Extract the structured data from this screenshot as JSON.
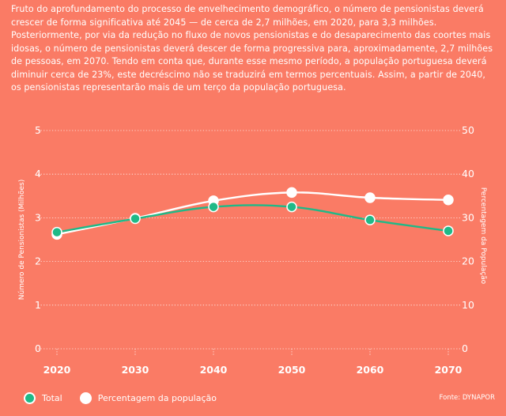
{
  "intro": {
    "text": "Fruto do aprofundamento do processo de envelhecimento demográfico, o número de pensionistas deverá crescer de forma significativa até 2045 — de cerca de 2,7 milhões, em 2020, para 3,3 milhões. Posteriormente, por via da redução no fluxo de novos pensionistas e do desaparecimento das coortes mais idosas, o número de pensionistas deverá descer de forma progressiva para, aproximadamente, 2,7 milhões de pessoas, em 2070. Tendo em conta que, durante esse mesmo período, a população portuguesa deverá diminuir cerca de 23%, este decréscimo não se traduzirá em termos percentuais. Assim, a partir de 2040, os pensionistas representarão mais de um terço da população portuguesa."
  },
  "colors": {
    "background": "#FA7B65",
    "total": "#1FB987",
    "percent": "#FFFFFF",
    "grid": "#FFFFFF"
  },
  "chart_data": {
    "type": "line",
    "categories": [
      "2020",
      "2030",
      "2040",
      "2050",
      "2060",
      "2070"
    ],
    "series": [
      {
        "name": "Total",
        "axis": "left",
        "values": [
          2.67,
          2.98,
          3.25,
          3.25,
          2.95,
          2.7
        ]
      },
      {
        "name": "Percentagem da população",
        "axis": "right",
        "values": [
          26.2,
          29.9,
          33.9,
          35.8,
          34.6,
          34.1
        ]
      }
    ],
    "ylabel": "Número de Pensionistas (Milhões)",
    "ylabel_right": "Percentagem da População",
    "ylim": [
      0,
      5
    ],
    "ylim_right": [
      0,
      50
    ],
    "yticks": [
      "0",
      "1",
      "2",
      "3",
      "4",
      "5"
    ],
    "yticks_right": [
      "0",
      "10",
      "20",
      "30",
      "40",
      "50"
    ],
    "grid": true
  },
  "legend": {
    "total_label": "Total",
    "percent_label": "Percentagem da população"
  },
  "source": "Fonte: DYNAPOR"
}
